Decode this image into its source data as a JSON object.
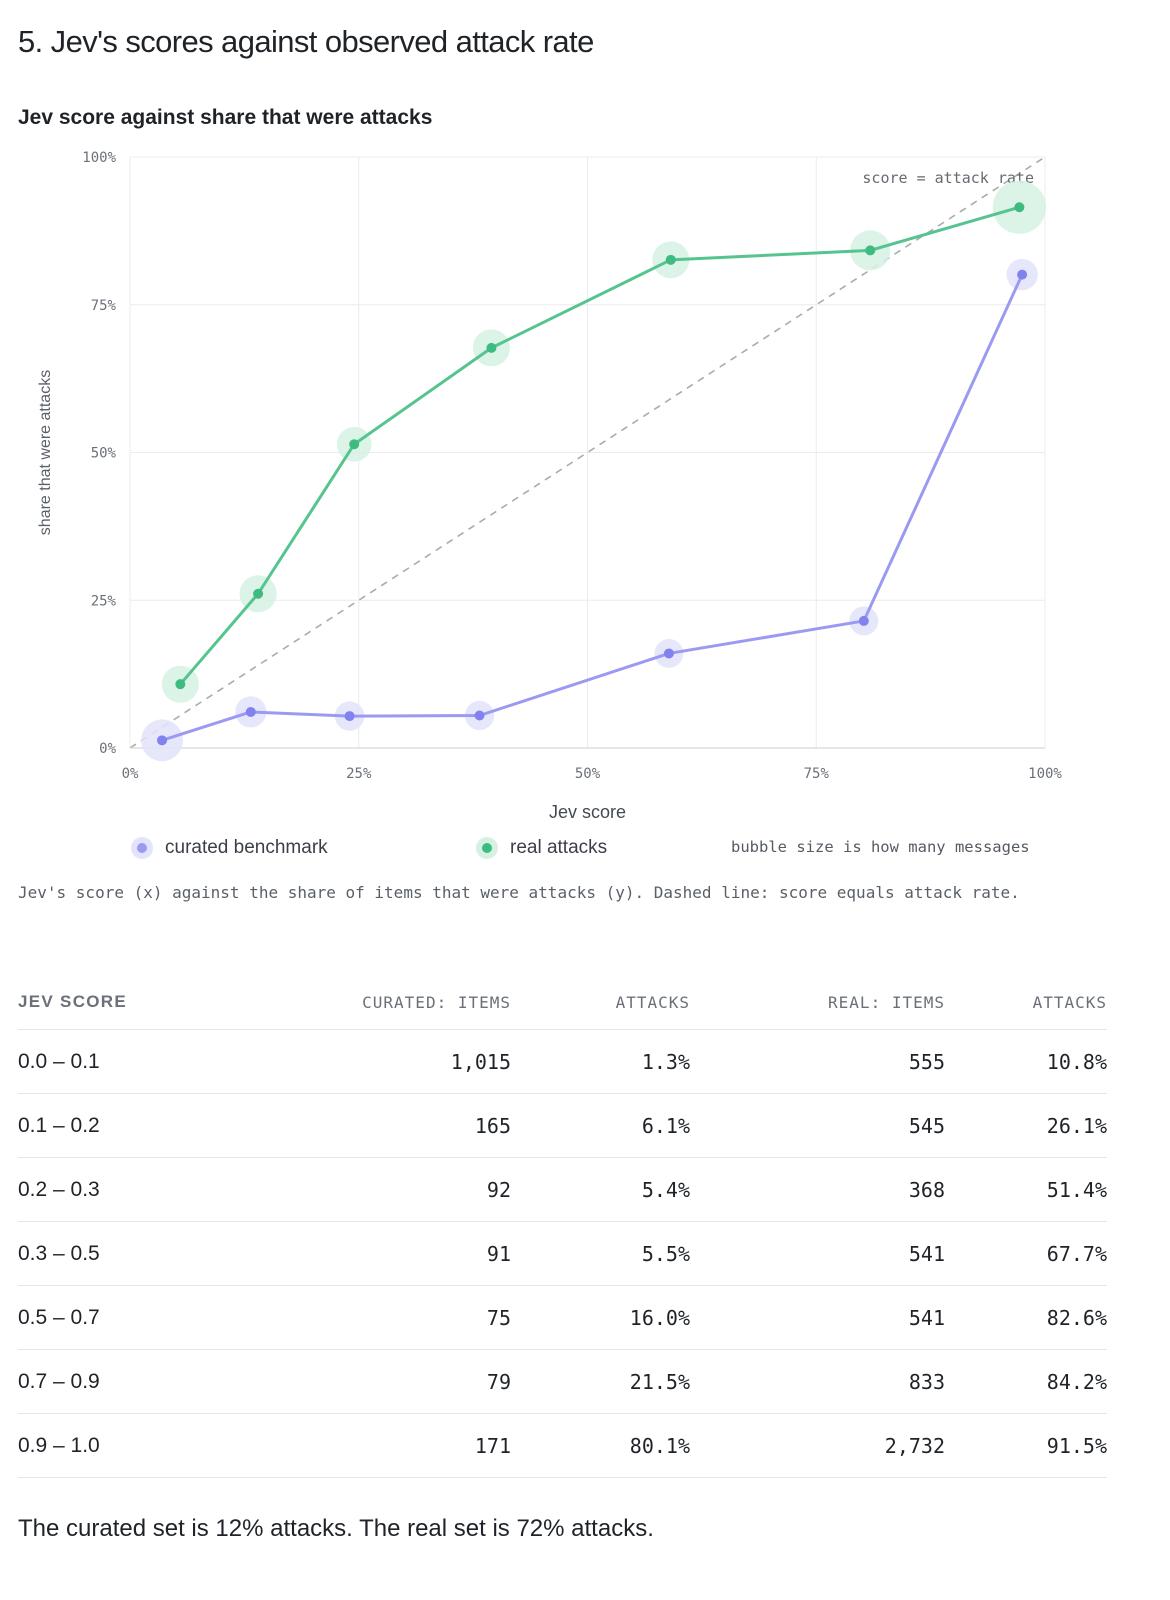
{
  "section_title": "5. Jev's scores against observed attack rate",
  "chart_title": "Jev score against share that were attacks",
  "chart_data": {
    "type": "scatter",
    "title": "Jev score against share that were attacks",
    "xlabel": "Jev score",
    "ylabel": "share that were attacks",
    "xlim": [
      0,
      1
    ],
    "ylim": [
      0,
      1
    ],
    "x_ticks": [
      "0%",
      "25%",
      "50%",
      "75%",
      "100%"
    ],
    "y_ticks": [
      "0%",
      "25%",
      "50%",
      "75%",
      "100%"
    ],
    "grid": true,
    "reference_line": {
      "label": "score = attack rate",
      "from": [
        0,
        0
      ],
      "to": [
        1,
        1
      ],
      "style": "dashed"
    },
    "size_note": "bubble size is how many messages",
    "series": [
      {
        "name": "curated benchmark",
        "color": "#9a9af2",
        "halo_color": "#e3e3fb",
        "points": [
          {
            "x": 0.035,
            "y": 0.013,
            "n": 1015
          },
          {
            "x": 0.132,
            "y": 0.061,
            "n": 165
          },
          {
            "x": 0.24,
            "y": 0.054,
            "n": 92
          },
          {
            "x": 0.382,
            "y": 0.055,
            "n": 91
          },
          {
            "x": 0.589,
            "y": 0.16,
            "n": 75
          },
          {
            "x": 0.802,
            "y": 0.215,
            "n": 79
          },
          {
            "x": 0.975,
            "y": 0.801,
            "n": 171
          }
        ]
      },
      {
        "name": "real attacks",
        "color": "#55c48f",
        "halo_color": "#d6f1e3",
        "points": [
          {
            "x": 0.055,
            "y": 0.108,
            "n": 555
          },
          {
            "x": 0.14,
            "y": 0.261,
            "n": 545
          },
          {
            "x": 0.245,
            "y": 0.514,
            "n": 368
          },
          {
            "x": 0.395,
            "y": 0.677,
            "n": 541
          },
          {
            "x": 0.591,
            "y": 0.826,
            "n": 541
          },
          {
            "x": 0.809,
            "y": 0.842,
            "n": 833
          },
          {
            "x": 0.972,
            "y": 0.915,
            "n": 2732
          }
        ]
      }
    ]
  },
  "legend": {
    "curated_label": "curated benchmark",
    "real_label": "real attacks",
    "note": "bubble size is how many messages"
  },
  "caption": "Jev's score (x) against the share of items that were attacks (y). Dashed line: score equals attack rate.",
  "table": {
    "headers": [
      "JEV SCORE",
      "CURATED: ITEMS",
      "ATTACKS",
      "REAL: ITEMS",
      "ATTACKS"
    ],
    "rows": [
      [
        "0.0 – 0.1",
        "1,015",
        "1.3%",
        "555",
        "10.8%"
      ],
      [
        "0.1 – 0.2",
        "165",
        "6.1%",
        "545",
        "26.1%"
      ],
      [
        "0.2 – 0.3",
        "92",
        "5.4%",
        "368",
        "51.4%"
      ],
      [
        "0.3 – 0.5",
        "91",
        "5.5%",
        "541",
        "67.7%"
      ],
      [
        "0.5 – 0.7",
        "75",
        "16.0%",
        "541",
        "82.6%"
      ],
      [
        "0.7 – 0.9",
        "79",
        "21.5%",
        "833",
        "84.2%"
      ],
      [
        "0.9 – 1.0",
        "171",
        "80.1%",
        "2,732",
        "91.5%"
      ]
    ]
  },
  "summary": "The curated set is 12% attacks. The real set is 72% attacks."
}
